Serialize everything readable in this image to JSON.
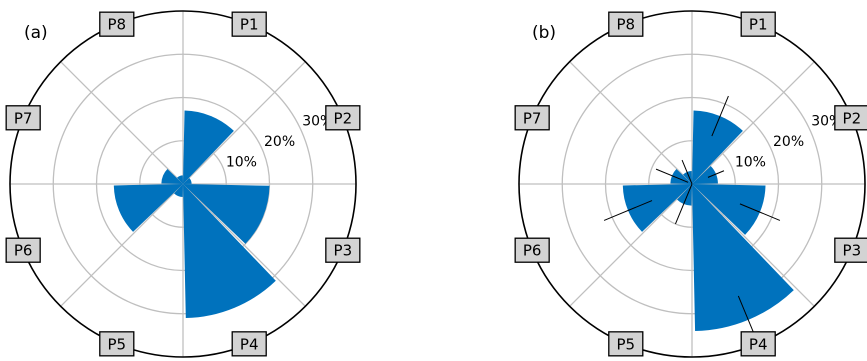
{
  "colors": {
    "bar": "#0072bd",
    "grid": "#bfbfbf",
    "outer_circle": "#000000",
    "label_box": "#d3d3d3"
  },
  "chart_data": [
    {
      "type": "polar-bar",
      "panel_label": "(a)",
      "categories": [
        "P1",
        "P2",
        "P3",
        "P4",
        "P5",
        "P6",
        "P7",
        "P8"
      ],
      "values": [
        17,
        2,
        20,
        31,
        3,
        16,
        5,
        2
      ],
      "radial_ticks": [
        "10%",
        "20%",
        "30%"
      ],
      "radial_tick_values": [
        10,
        20,
        30
      ],
      "rmax": 40,
      "grid": true,
      "error_bars": false
    },
    {
      "type": "polar-bar",
      "panel_label": "(b)",
      "categories": [
        "P1",
        "P2",
        "P3",
        "P4",
        "P5",
        "P6",
        "P7",
        "P8"
      ],
      "values": [
        17,
        6,
        17,
        34,
        5,
        16,
        5,
        3
      ],
      "errors": [
        5,
        2,
        5,
        6,
        5,
        6,
        4,
        3
      ],
      "radial_ticks": [
        "10%",
        "20%",
        "30%"
      ],
      "radial_tick_values": [
        10,
        20,
        30
      ],
      "rmax": 40,
      "grid": true,
      "error_bars": true
    }
  ]
}
